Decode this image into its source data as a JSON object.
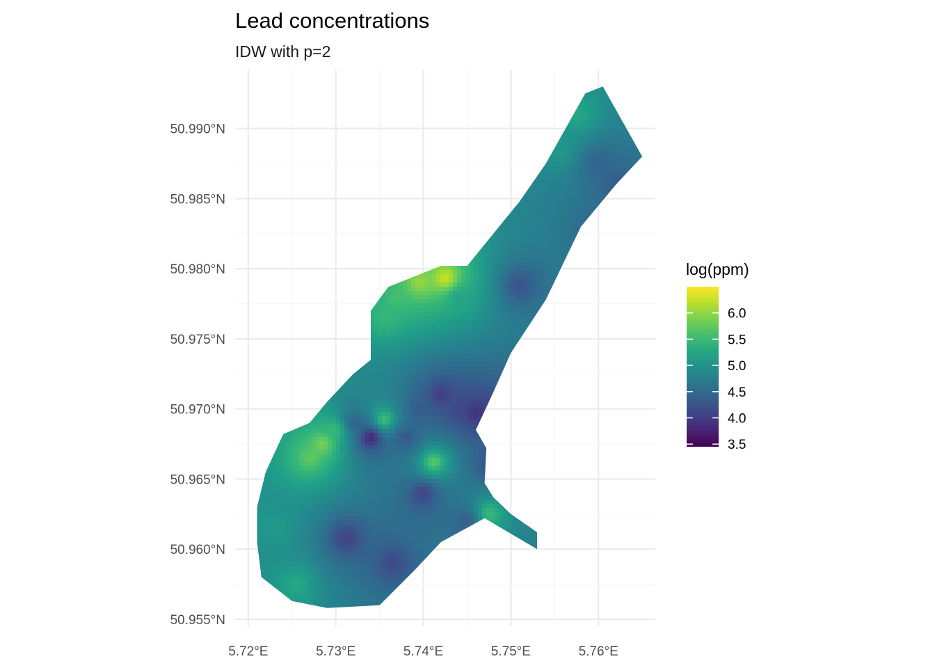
{
  "chart_data": {
    "type": "heatmap",
    "title": "Lead concentrations",
    "subtitle": "IDW with p=2",
    "xlabel": "",
    "ylabel": "",
    "x_ticks": [
      5.72,
      5.73,
      5.74,
      5.75,
      5.76
    ],
    "x_tick_labels": [
      "5.72°E",
      "5.73°E",
      "5.74°E",
      "5.75°E",
      "5.76°E"
    ],
    "y_ticks": [
      50.955,
      50.96,
      50.965,
      50.97,
      50.975,
      50.98,
      50.985,
      50.99
    ],
    "y_tick_labels": [
      "50.955°N",
      "50.960°N",
      "50.965°N",
      "50.970°N",
      "50.975°N",
      "50.980°N",
      "50.985°N",
      "50.990°N"
    ],
    "xlim": [
      5.7185,
      5.7665
    ],
    "ylim": [
      50.9545,
      50.9942
    ],
    "grid": true,
    "legend": {
      "title": "log(ppm)",
      "position": "right",
      "min": 3.45,
      "max": 6.5,
      "breaks": [
        6.0,
        5.5,
        5.0,
        4.5,
        4.0,
        3.5
      ],
      "break_labels": [
        "6.0",
        "5.5",
        "5.0",
        "4.5",
        "4.0",
        "3.5"
      ],
      "colormap": "viridis"
    },
    "region_outline": [
      [
        5.721,
        50.9605
      ],
      [
        5.7215,
        50.958
      ],
      [
        5.725,
        50.9563
      ],
      [
        5.729,
        50.9558
      ],
      [
        5.735,
        50.956
      ],
      [
        5.739,
        50.9585
      ],
      [
        5.742,
        50.9605
      ],
      [
        5.747,
        50.9622
      ],
      [
        5.753,
        50.96
      ],
      [
        5.753,
        50.9612
      ],
      [
        5.75,
        50.9625
      ],
      [
        5.748,
        50.9637
      ],
      [
        5.747,
        50.9647
      ],
      [
        5.7472,
        50.9672
      ],
      [
        5.746,
        50.9685
      ],
      [
        5.748,
        50.9712
      ],
      [
        5.75,
        50.974
      ],
      [
        5.754,
        50.9778
      ],
      [
        5.758,
        50.983
      ],
      [
        5.762,
        50.986
      ],
      [
        5.765,
        50.988
      ],
      [
        5.7605,
        50.993
      ],
      [
        5.7585,
        50.9925
      ],
      [
        5.754,
        50.9875
      ],
      [
        5.751,
        50.9848
      ],
      [
        5.745,
        50.9802
      ],
      [
        5.742,
        50.9802
      ],
      [
        5.738,
        50.9792
      ],
      [
        5.736,
        50.9787
      ],
      [
        5.734,
        50.977
      ],
      [
        5.734,
        50.9735
      ],
      [
        5.732,
        50.9725
      ],
      [
        5.729,
        50.9705
      ],
      [
        5.727,
        50.969
      ],
      [
        5.724,
        50.9682
      ],
      [
        5.722,
        50.9655
      ],
      [
        5.721,
        50.963
      ]
    ],
    "base_value": 4.8,
    "value_hotspots": [
      {
        "lon": 5.7425,
        "lat": 50.9793,
        "value": 6.4
      },
      {
        "lon": 5.7395,
        "lat": 50.979,
        "value": 6.1
      },
      {
        "lon": 5.737,
        "lat": 50.978,
        "value": 5.6
      },
      {
        "lon": 5.7355,
        "lat": 50.9765,
        "value": 5.5
      },
      {
        "lon": 5.744,
        "lat": 50.978,
        "value": 5.2
      },
      {
        "lon": 5.7285,
        "lat": 50.9675,
        "value": 6.0
      },
      {
        "lon": 5.727,
        "lat": 50.9665,
        "value": 5.8
      },
      {
        "lon": 5.73,
        "lat": 50.9685,
        "value": 5.6
      },
      {
        "lon": 5.7355,
        "lat": 50.9692,
        "value": 5.8
      },
      {
        "lon": 5.7412,
        "lat": 50.9662,
        "value": 5.9
      },
      {
        "lon": 5.7475,
        "lat": 50.9625,
        "value": 5.6
      },
      {
        "lon": 5.7255,
        "lat": 50.9575,
        "value": 5.3
      },
      {
        "lon": 5.7575,
        "lat": 50.991,
        "value": 5.3
      },
      {
        "lon": 5.7555,
        "lat": 50.9885,
        "value": 5.1
      },
      {
        "lon": 5.723,
        "lat": 50.9615,
        "value": 5.1
      },
      {
        "lon": 5.734,
        "lat": 50.968,
        "value": 3.5
      },
      {
        "lon": 5.742,
        "lat": 50.971,
        "value": 3.9
      },
      {
        "lon": 5.746,
        "lat": 50.9697,
        "value": 3.8
      },
      {
        "lon": 5.748,
        "lat": 50.9697,
        "value": 3.9
      },
      {
        "lon": 5.74,
        "lat": 50.964,
        "value": 4.0
      },
      {
        "lon": 5.7312,
        "lat": 50.9608,
        "value": 4.0
      },
      {
        "lon": 5.7365,
        "lat": 50.959,
        "value": 4.1
      },
      {
        "lon": 5.751,
        "lat": 50.9788,
        "value": 4.2
      },
      {
        "lon": 5.7475,
        "lat": 50.966,
        "value": 4.2
      },
      {
        "lon": 5.762,
        "lat": 50.986,
        "value": 4.3
      },
      {
        "lon": 5.738,
        "lat": 50.968,
        "value": 4.2
      },
      {
        "lon": 5.7395,
        "lat": 50.97,
        "value": 4.3
      },
      {
        "lon": 5.744,
        "lat": 50.97,
        "value": 4.1
      },
      {
        "lon": 5.76,
        "lat": 50.9875,
        "value": 4.4
      },
      {
        "lon": 5.745,
        "lat": 50.962,
        "value": 4.3
      },
      {
        "lon": 5.759,
        "lat": 50.983,
        "value": 4.5
      },
      {
        "lon": 5.732,
        "lat": 50.969,
        "value": 4.3
      }
    ]
  }
}
